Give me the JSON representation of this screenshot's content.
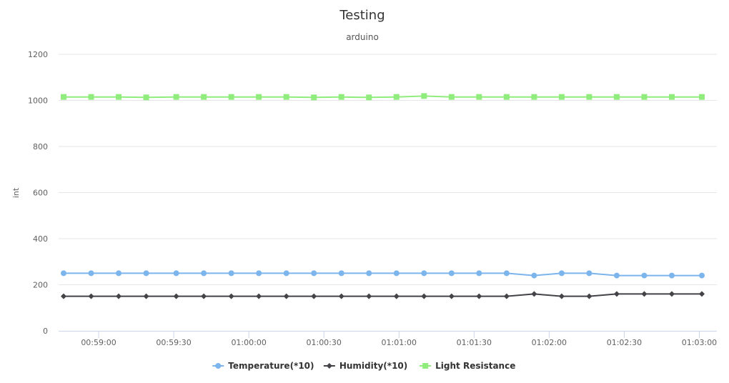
{
  "chart_data": {
    "type": "line",
    "title": "Testing",
    "subtitle": "arduino",
    "ylabel": "int",
    "ylim": [
      0,
      1200
    ],
    "yticks": [
      0,
      200,
      400,
      600,
      800,
      1000,
      1200
    ],
    "xlim": [
      "00:58:44",
      "01:03:07"
    ],
    "xticks": [
      "00:59:00",
      "00:59:30",
      "01:00:00",
      "01:00:30",
      "01:01:00",
      "01:01:30",
      "01:02:00",
      "01:02:30",
      "01:03:00"
    ],
    "grid": true,
    "legend": "bottom-center",
    "x": [
      "00:58:46",
      "00:58:57",
      "00:59:08",
      "00:59:19",
      "00:59:31",
      "00:59:42",
      "00:59:53",
      "01:00:04",
      "01:00:15",
      "01:00:26",
      "01:00:37",
      "01:00:48",
      "01:00:59",
      "01:01:10",
      "01:01:21",
      "01:01:32",
      "01:01:43",
      "01:01:54",
      "01:02:05",
      "01:02:16",
      "01:02:27",
      "01:02:38",
      "01:02:49",
      "01:03:01"
    ],
    "series": [
      {
        "name": "Temperature(*10)",
        "color": "#7cb5ec",
        "marker": "circle",
        "values": [
          250,
          250,
          250,
          250,
          250,
          250,
          250,
          250,
          250,
          250,
          250,
          250,
          250,
          250,
          250,
          250,
          250,
          240,
          250,
          250,
          240,
          240,
          240,
          240
        ]
      },
      {
        "name": "Humidity(*10)",
        "color": "#434348",
        "marker": "diamond",
        "values": [
          150,
          150,
          150,
          150,
          150,
          150,
          150,
          150,
          150,
          150,
          150,
          150,
          150,
          150,
          150,
          150,
          150,
          160,
          150,
          150,
          160,
          160,
          160,
          160
        ]
      },
      {
        "name": "Light Resistance",
        "color": "#90ed7d",
        "marker": "square",
        "values": [
          1015,
          1015,
          1015,
          1013,
          1015,
          1015,
          1015,
          1015,
          1015,
          1013,
          1015,
          1013,
          1015,
          1019,
          1015,
          1015,
          1015,
          1015,
          1015,
          1015,
          1015,
          1015,
          1015,
          1015
        ]
      }
    ]
  }
}
